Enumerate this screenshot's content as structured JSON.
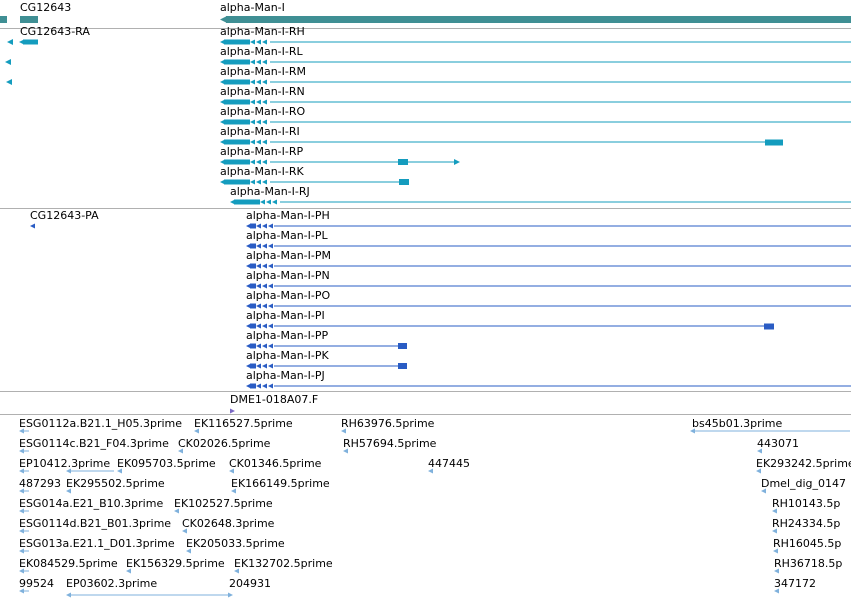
{
  "colors": {
    "gene": "#3f8f94",
    "transcript_rna": "#149cbe",
    "transcript_protein": "#2a5cc4",
    "est": "#7fb1dc",
    "separator": "#b0b0b0"
  },
  "genes": {
    "left_label": "CG12643",
    "main_label": "alpha-Man-I"
  },
  "transcripts": {
    "left_label": "CG12643-RA",
    "items": [
      "alpha-Man-I-RH",
      "alpha-Man-I-RL",
      "alpha-Man-I-RM",
      "alpha-Man-I-RN",
      "alpha-Man-I-RO",
      "alpha-Man-I-RI",
      "alpha-Man-I-RP",
      "alpha-Man-I-RK",
      "alpha-Man-I-RJ"
    ]
  },
  "proteins": {
    "left_label": "CG12643-PA",
    "items": [
      "alpha-Man-I-PH",
      "alpha-Man-I-PL",
      "alpha-Man-I-PM",
      "alpha-Man-I-PN",
      "alpha-Man-I-PO",
      "alpha-Man-I-PI",
      "alpha-Man-I-PP",
      "alpha-Man-I-PK",
      "alpha-Man-I-PJ"
    ]
  },
  "insertion": {
    "label": "DME1-018A07.F"
  },
  "ests": {
    "col1": [
      "ESG0112a.B21.1_H05.3prime",
      "ESG0114c.B21_F04.3prime",
      "EP10412.3prime",
      "487293",
      "ESG014a.E21_B10.3prime",
      "ESG0114d.B21_B01.3prime",
      "ESG013a.E21.1_D01.3prime",
      "EK084529.5prime",
      "99524"
    ],
    "col2": [
      "EK116527.5prime",
      "CK02026.5prime",
      "EK095703.5prime",
      "EK295502.5prime",
      "EK102527.5prime",
      "CK02648.3prime",
      "EK205033.5prime",
      "EK156329.5prime",
      "EP03602.3prime"
    ],
    "col3": [
      "RH63976.5prime",
      "RH57694.5prime",
      "CK01346.5prime",
      "EK166149.5prime",
      "EK132702.5prime",
      "204931"
    ],
    "col4": [
      "447445"
    ],
    "col5": [
      "bs45b01.3prime",
      "443071",
      "EK293242.5prime",
      "Dmel_dig_0147",
      "RH10143.5p",
      "RH24334.5p",
      "RH16045.5p",
      "RH36718.5p",
      "347172"
    ]
  }
}
